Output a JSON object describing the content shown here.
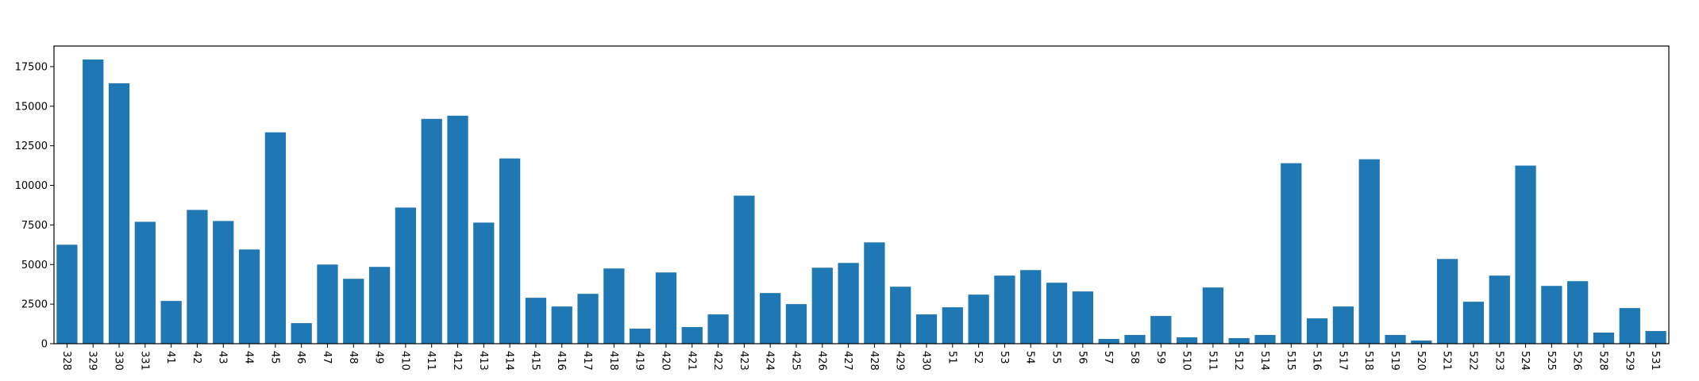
{
  "chart_data": {
    "type": "bar",
    "title": "",
    "xlabel": "",
    "ylabel": "",
    "ylim": [
      0,
      18800
    ],
    "yticks": [
      0,
      2500,
      5000,
      7500,
      10000,
      12500,
      15000,
      17500
    ],
    "ytick_labels": [
      "0",
      "2500",
      "5000",
      "7500",
      "10000",
      "12500",
      "15000",
      "17500"
    ],
    "bar_color": "#1f77b4",
    "grid": false,
    "categories": [
      "328",
      "329",
      "330",
      "331",
      "41",
      "42",
      "43",
      "44",
      "45",
      "46",
      "47",
      "48",
      "49",
      "410",
      "411",
      "412",
      "413",
      "414",
      "415",
      "416",
      "417",
      "418",
      "419",
      "420",
      "421",
      "422",
      "423",
      "424",
      "425",
      "426",
      "427",
      "428",
      "429",
      "430",
      "51",
      "52",
      "53",
      "54",
      "55",
      "56",
      "57",
      "58",
      "59",
      "510",
      "511",
      "512",
      "514",
      "515",
      "516",
      "517",
      "518",
      "519",
      "520",
      "521",
      "522",
      "523",
      "524",
      "525",
      "526",
      "528",
      "529",
      "531"
    ],
    "values": [
      6250,
      17950,
      16450,
      7700,
      2700,
      8450,
      7750,
      5950,
      13350,
      1300,
      5000,
      4100,
      4850,
      8600,
      14200,
      14400,
      7650,
      11700,
      2900,
      2350,
      3150,
      4750,
      950,
      4500,
      1050,
      1850,
      9350,
      3200,
      2500,
      4800,
      5100,
      6400,
      3600,
      1850,
      2300,
      3100,
      4300,
      4650,
      3850,
      3300,
      300,
      550,
      1750,
      400,
      3550,
      350,
      550,
      11400,
      1600,
      2350,
      11650,
      550,
      200,
      5350,
      2650,
      4300,
      11250,
      3650,
      3950,
      700,
      2250,
      800
    ]
  }
}
